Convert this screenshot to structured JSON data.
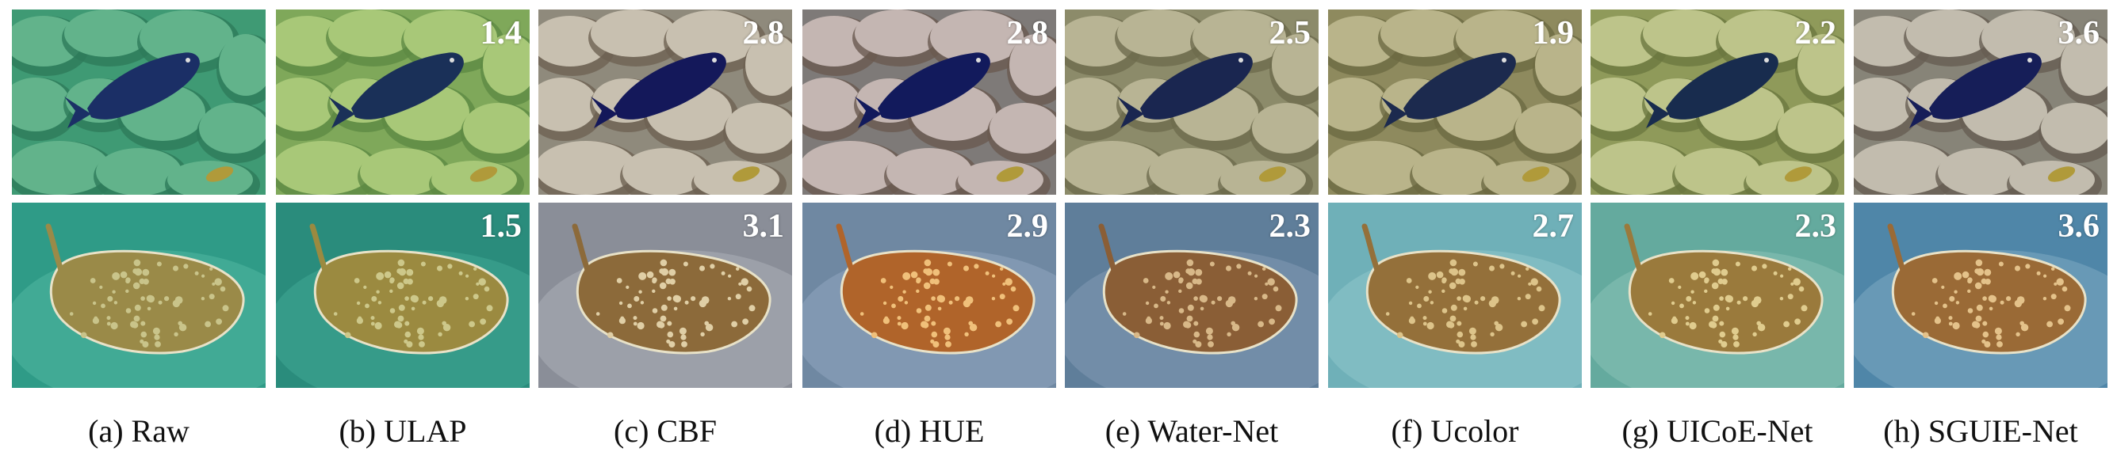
{
  "columns": [
    {
      "caption": "(a) Raw",
      "scores": {
        "top": "",
        "bottom": ""
      },
      "colors": {
        "top_bg": "#3f9a74",
        "top_rock": "#62b38b",
        "top_rock_dark": "#2e7a5a",
        "top_fish": "#1b2f66",
        "bottom_bg": "#2f9b87",
        "bottom_sand": "#4fb49e",
        "bottom_ray": "#9a8a48",
        "bottom_spot": "#c9c48a"
      }
    },
    {
      "caption": "(b) ULAP",
      "scores": {
        "top": "1.4",
        "bottom": "1.5"
      },
      "colors": {
        "top_bg": "#7fa85a",
        "top_rock": "#a8c878",
        "top_rock_dark": "#5e8a44",
        "top_fish": "#1a3058",
        "bottom_bg": "#2a8c7c",
        "bottom_sand": "#3fa592",
        "bottom_ray": "#9b8a40",
        "bottom_spot": "#cdc88a"
      }
    },
    {
      "caption": "(c) CBF",
      "scores": {
        "top": "2.8",
        "bottom": "3.1"
      },
      "colors": {
        "top_bg": "#8f8a7c",
        "top_rock": "#c8c0b0",
        "top_rock_dark": "#6e6252",
        "top_fish": "#14185a",
        "bottom_bg": "#8a8e98",
        "bottom_sand": "#a9acb4",
        "bottom_ray": "#8c6a3a",
        "bottom_spot": "#e0cfa6"
      }
    },
    {
      "caption": "(d) HUE",
      "scores": {
        "top": "2.8",
        "bottom": "2.9"
      },
      "colors": {
        "top_bg": "#7e7a78",
        "top_rock": "#c4b6b2",
        "top_rock_dark": "#6a5a50",
        "top_fish": "#121a5c",
        "bottom_bg": "#6f88a2",
        "bottom_sand": "#8ea4bc",
        "bottom_ray": "#b0642a",
        "bottom_spot": "#f0c07a"
      }
    },
    {
      "caption": "(e) Water-Net",
      "scores": {
        "top": "2.5",
        "bottom": "2.3"
      },
      "colors": {
        "top_bg": "#8c8b6a",
        "top_rock": "#b8b494",
        "top_rock_dark": "#6e6c4e",
        "top_fish": "#1a2650",
        "bottom_bg": "#5f7e9a",
        "bottom_sand": "#7f98b2",
        "bottom_ray": "#8a5e36",
        "bottom_spot": "#d8b888"
      }
    },
    {
      "caption": "(f) Ucolor",
      "scores": {
        "top": "1.9",
        "bottom": "2.7"
      },
      "colors": {
        "top_bg": "#8e8a5e",
        "top_rock": "#b9b48a",
        "top_rock_dark": "#6d6a42",
        "top_fish": "#1c2a4e",
        "bottom_bg": "#6fb0b8",
        "bottom_sand": "#8cc4c8",
        "bottom_ray": "#94703a",
        "bottom_spot": "#ddc48a"
      }
    },
    {
      "caption": "(g) UICoE-Net",
      "scores": {
        "top": "2.2",
        "bottom": "2.3"
      },
      "colors": {
        "top_bg": "#8f9a5a",
        "top_rock": "#bdc48a",
        "top_rock_dark": "#6c7840",
        "top_fish": "#182c4e",
        "bottom_bg": "#64aa9e",
        "bottom_sand": "#86c0b4",
        "bottom_ray": "#9a7a3c",
        "bottom_spot": "#e0cc8e"
      }
    },
    {
      "caption": "(h) SGUIE-Net",
      "scores": {
        "top": "3.6",
        "bottom": "3.6"
      },
      "colors": {
        "top_bg": "#878478",
        "top_rock": "#c2bcae",
        "top_rock_dark": "#665e52",
        "top_fish": "#161e58",
        "bottom_bg": "#4f86a8",
        "bottom_sand": "#7aa6c0",
        "bottom_ray": "#9a6a36",
        "bottom_spot": "#e4c28a"
      }
    }
  ]
}
